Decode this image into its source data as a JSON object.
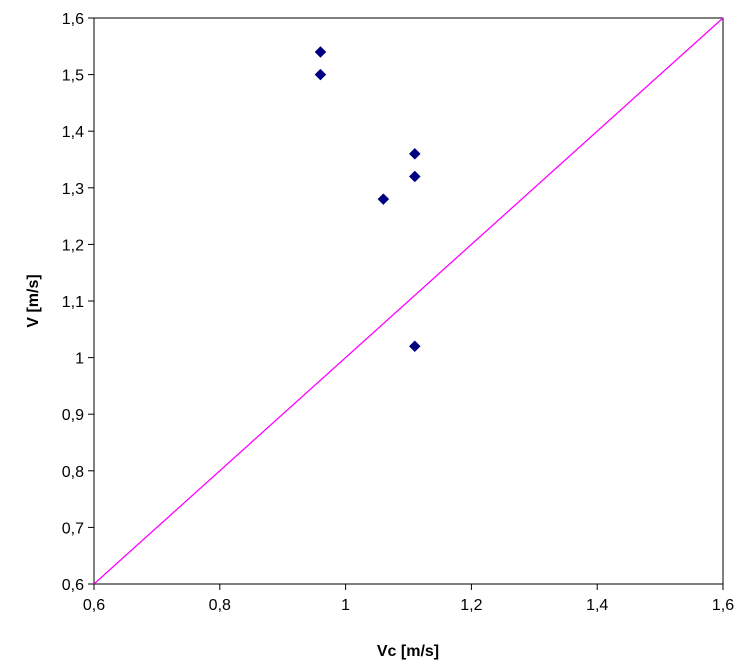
{
  "chart_data": {
    "type": "scatter",
    "xlabel": "Vc [m/s]",
    "ylabel": "V [m/s]",
    "xlim": [
      0.6,
      1.6
    ],
    "ylim": [
      0.6,
      1.6
    ],
    "x_ticks": [
      {
        "value": 0.6,
        "label": "0,6"
      },
      {
        "value": 0.8,
        "label": "0,8"
      },
      {
        "value": 1.0,
        "label": "1"
      },
      {
        "value": 1.2,
        "label": "1,2"
      },
      {
        "value": 1.4,
        "label": "1,4"
      },
      {
        "value": 1.6,
        "label": "1,6"
      }
    ],
    "y_ticks": [
      {
        "value": 0.6,
        "label": "0,6"
      },
      {
        "value": 0.7,
        "label": "0,7"
      },
      {
        "value": 0.8,
        "label": "0,8"
      },
      {
        "value": 0.9,
        "label": "0,9"
      },
      {
        "value": 1.0,
        "label": "1"
      },
      {
        "value": 1.1,
        "label": "1,1"
      },
      {
        "value": 1.2,
        "label": "1,2"
      },
      {
        "value": 1.3,
        "label": "1,3"
      },
      {
        "value": 1.4,
        "label": "1,4"
      },
      {
        "value": 1.5,
        "label": "1,5"
      },
      {
        "value": 1.6,
        "label": "1,6"
      }
    ],
    "grid": false,
    "legend": "none",
    "series": [
      {
        "marker": "diamond",
        "color": "#000080",
        "points": [
          {
            "x": 0.96,
            "y": 1.54
          },
          {
            "x": 0.96,
            "y": 1.5
          },
          {
            "x": 1.11,
            "y": 1.36
          },
          {
            "x": 1.11,
            "y": 1.32
          },
          {
            "x": 1.06,
            "y": 1.28
          },
          {
            "x": 1.11,
            "y": 1.02
          }
        ]
      }
    ],
    "reference_line": {
      "color": "#ff00ff",
      "from": {
        "x": 0.6,
        "y": 0.6
      },
      "to": {
        "x": 1.6,
        "y": 1.6
      }
    }
  }
}
